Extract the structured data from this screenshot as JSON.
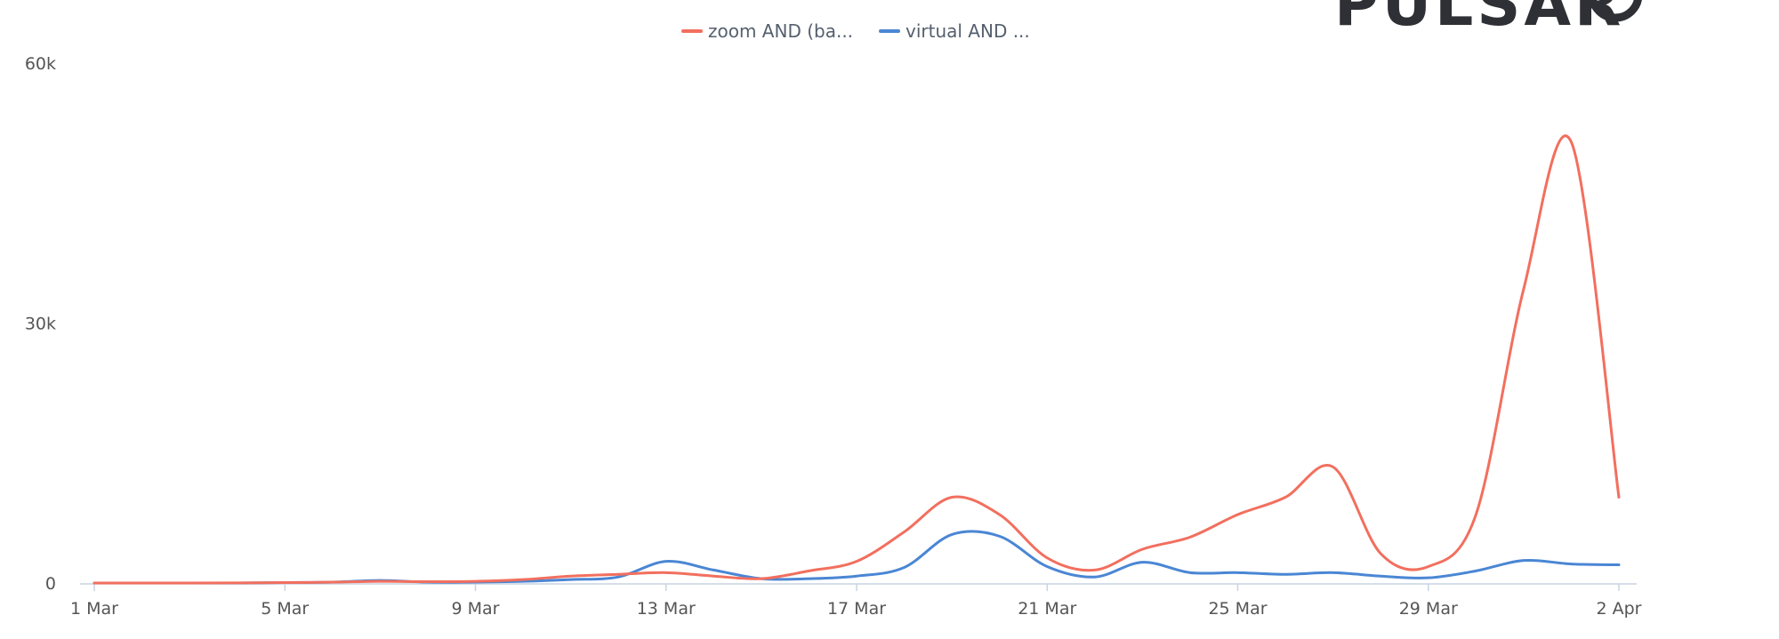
{
  "logo": {
    "text": "PULSAR"
  },
  "chart_data": {
    "type": "line",
    "title": "",
    "xlabel": "",
    "ylabel": "",
    "x_labels": [
      "1 Mar",
      "5 Mar",
      "9 Mar",
      "13 Mar",
      "17 Mar",
      "21 Mar",
      "25 Mar",
      "29 Mar",
      "2 Apr"
    ],
    "x_label_days": [
      0,
      4,
      8,
      12,
      16,
      20,
      24,
      28,
      32
    ],
    "y_ticks": [
      0,
      30000,
      60000
    ],
    "y_tick_labels": [
      "0",
      "30k",
      "60k"
    ],
    "ylim": [
      0,
      60000
    ],
    "xlim": [
      0,
      32
    ],
    "legend_position": "top-center",
    "series": [
      {
        "name": "zoom AND (ba...",
        "color": "#f26f5e",
        "x": [
          0,
          1,
          2,
          3,
          4,
          5,
          6,
          7,
          8,
          9,
          10,
          11,
          12,
          13,
          14,
          15,
          16,
          17,
          18,
          19,
          20,
          21,
          22,
          23,
          24,
          25,
          26,
          27,
          28,
          29,
          30,
          31,
          32
        ],
        "values": [
          100,
          100,
          100,
          120,
          150,
          200,
          300,
          250,
          300,
          500,
          900,
          1100,
          1300,
          900,
          600,
          1500,
          2600,
          6000,
          10000,
          8000,
          3000,
          1600,
          4000,
          5400,
          8000,
          10000,
          13500,
          3500,
          2000,
          8000,
          34000,
          51000,
          10000
        ]
      },
      {
        "name": "virtual AND ...",
        "color": "#4a86d4",
        "x": [
          0,
          1,
          2,
          3,
          4,
          5,
          6,
          7,
          8,
          9,
          10,
          11,
          12,
          13,
          14,
          15,
          16,
          17,
          18,
          19,
          20,
          21,
          22,
          23,
          24,
          25,
          26,
          27,
          28,
          29,
          30,
          31,
          32
        ],
        "values": [
          100,
          100,
          100,
          100,
          150,
          200,
          400,
          200,
          200,
          300,
          500,
          800,
          2600,
          1600,
          600,
          600,
          900,
          1900,
          5700,
          5500,
          2000,
          800,
          2500,
          1300,
          1300,
          1100,
          1300,
          900,
          700,
          1500,
          2700,
          2300,
          2200
        ]
      }
    ]
  }
}
